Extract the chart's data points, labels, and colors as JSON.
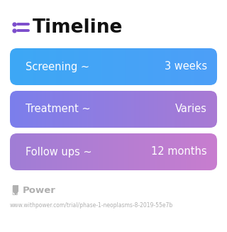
{
  "title": "Timeline",
  "title_icon_color": "#7c4dcc",
  "background_color": "#ffffff",
  "rows": [
    {
      "label": "Screening ~",
      "value": "3 weeks",
      "color_left": "#3da8f5",
      "color_right": "#4d9ff8"
    },
    {
      "label": "Treatment ~",
      "value": "Varies",
      "color_left": "#7b7fec",
      "color_right": "#a97ad4"
    },
    {
      "label": "Follow ups ~",
      "value": "12 months",
      "color_left": "#a07dd6",
      "color_right": "#c87ecf"
    }
  ],
  "footer_logo_text": "Power",
  "footer_url": "www.withpower.com/trial/phase-1-neoplasms-8-2019-55e7b",
  "footer_color": "#b0b0b0",
  "text_color": "#ffffff",
  "label_fontsize": 10.5,
  "value_fontsize": 10.5,
  "title_fontsize": 19,
  "title_color": "#111111"
}
